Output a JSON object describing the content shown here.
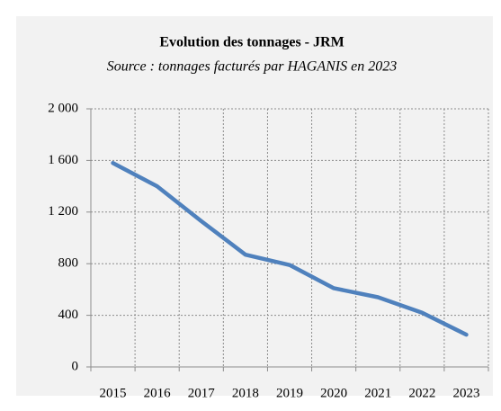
{
  "chart_data": {
    "type": "line",
    "title": "Evolution des tonnages - JRM",
    "subtitle": "Source : tonnages facturés par HAGANIS en 2023",
    "categories": [
      "2015",
      "2016",
      "2017",
      "2018",
      "2019",
      "2020",
      "2021",
      "2022",
      "2023"
    ],
    "values": [
      1580,
      1400,
      1130,
      870,
      790,
      610,
      540,
      420,
      250
    ],
    "color": "#4f81bd",
    "ylim": [
      0,
      2000
    ],
    "yticks": [
      0,
      {
        "value": 400,
        "label": "400"
      },
      {
        "value": 800,
        "label": "800"
      },
      {
        "value": 1200,
        "label": "1 200"
      },
      {
        "value": 1600,
        "label": "1 600"
      },
      {
        "value": 2000,
        "label": "2 000"
      }
    ],
    "grid": true
  }
}
